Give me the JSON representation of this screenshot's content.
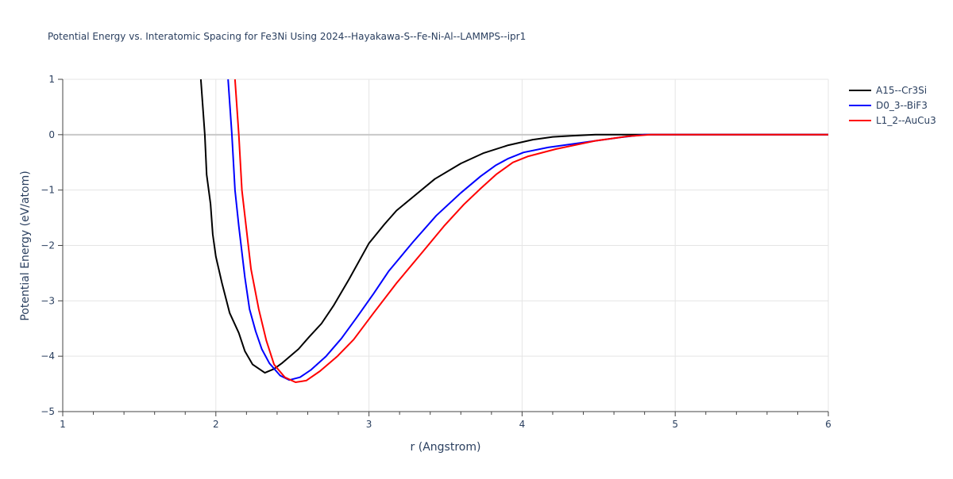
{
  "chart_data": {
    "type": "line",
    "title": "Potential Energy vs. Interatomic Spacing for Fe3Ni Using 2024--Hayakawa-S--Fe-Ni-Al--LAMMPS--ipr1",
    "xlabel": "r (Angstrom)",
    "ylabel": "Potential Energy (eV/atom)",
    "xlim": [
      1,
      6
    ],
    "ylim": [
      -5,
      1
    ],
    "xticks": [
      1,
      2,
      3,
      4,
      5,
      6
    ],
    "yticks": [
      1,
      0,
      -1,
      -2,
      -3,
      -4,
      -5
    ],
    "ytick_labels": [
      "1",
      "0",
      "−1",
      "−2",
      "−3",
      "−4",
      "−5"
    ],
    "grid": true,
    "legend_position": "top-right",
    "series": [
      {
        "name": "A15--Cr3Si",
        "color": "#000000",
        "x": [
          1.902,
          1.928,
          1.94,
          1.965,
          1.98,
          2.0,
          2.04,
          2.09,
          2.15,
          2.19,
          2.24,
          2.32,
          2.38,
          2.43,
          2.54,
          2.61,
          2.69,
          2.77,
          2.87,
          3.0,
          3.1,
          3.18,
          3.29,
          3.43,
          3.6,
          3.75,
          3.91,
          4.07,
          4.2,
          4.32,
          4.48,
          5,
          6
        ],
        "y": [
          1,
          0,
          -0.72,
          -1.25,
          -1.8,
          -2.2,
          -2.68,
          -3.22,
          -3.58,
          -3.91,
          -4.15,
          -4.3,
          -4.23,
          -4.13,
          -3.87,
          -3.65,
          -3.41,
          -3.08,
          -2.61,
          -1.96,
          -1.62,
          -1.37,
          -1.12,
          -0.8,
          -0.52,
          -0.33,
          -0.19,
          -0.09,
          -0.04,
          -0.02,
          0,
          0,
          0
        ]
      },
      {
        "name": "D0_3--BiF3",
        "color": "#0000ff",
        "x": [
          2.08,
          2.105,
          2.125,
          2.15,
          2.19,
          2.22,
          2.26,
          2.3,
          2.35,
          2.42,
          2.48,
          2.55,
          2.62,
          2.72,
          2.82,
          2.92,
          3.03,
          3.13,
          3.29,
          3.44,
          3.6,
          3.73,
          3.83,
          3.91,
          4.01,
          4.17,
          4.43,
          4.64,
          4.8,
          5,
          6
        ],
        "y": [
          1,
          0,
          -1,
          -1.65,
          -2.58,
          -3.15,
          -3.55,
          -3.87,
          -4.13,
          -4.35,
          -4.43,
          -4.38,
          -4.25,
          -4.0,
          -3.68,
          -3.3,
          -2.87,
          -2.46,
          -1.93,
          -1.46,
          -1.05,
          -0.75,
          -0.55,
          -0.43,
          -0.32,
          -0.23,
          -0.13,
          -0.05,
          0,
          0,
          0
        ]
      },
      {
        "name": "L1_2--AuCu3",
        "color": "#ff0000",
        "x": [
          2.125,
          2.15,
          2.17,
          2.2,
          2.23,
          2.28,
          2.33,
          2.38,
          2.45,
          2.52,
          2.59,
          2.68,
          2.79,
          2.9,
          3.03,
          3.18,
          3.34,
          3.49,
          3.62,
          3.73,
          3.83,
          3.94,
          4.04,
          4.22,
          4.48,
          4.69,
          4.84,
          5,
          6
        ],
        "y": [
          1,
          0,
          -1,
          -1.72,
          -2.43,
          -3.15,
          -3.72,
          -4.15,
          -4.38,
          -4.47,
          -4.44,
          -4.27,
          -4.01,
          -3.7,
          -3.22,
          -2.68,
          -2.15,
          -1.65,
          -1.26,
          -0.97,
          -0.72,
          -0.5,
          -0.39,
          -0.26,
          -0.11,
          -0.03,
          0,
          0,
          0
        ]
      }
    ]
  }
}
